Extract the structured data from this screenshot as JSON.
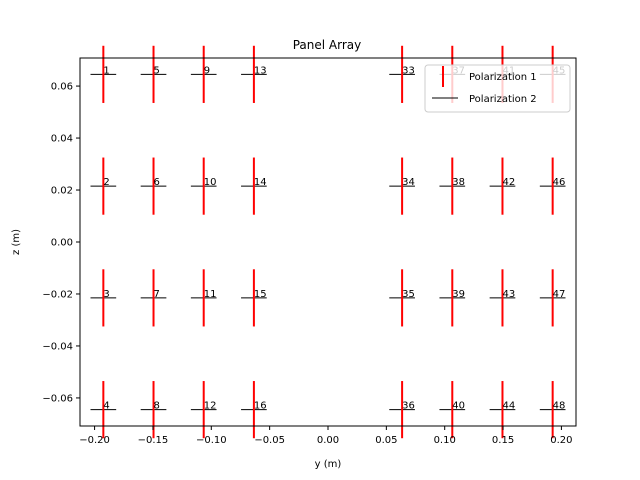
{
  "chart_data": {
    "type": "scatter",
    "title": "Panel Array",
    "xlabel": "y (m)",
    "ylabel": "z (m)",
    "xlim": [
      -0.2125,
      0.2125
    ],
    "ylim": [
      -0.0708,
      0.0708
    ],
    "xticks": [
      -0.2,
      -0.15,
      -0.1,
      -0.05,
      0.0,
      0.05,
      0.1,
      0.15,
      0.2
    ],
    "xtick_labels": [
      "−0.20",
      "−0.15",
      "−0.10",
      "−0.05",
      "0.00",
      "0.05",
      "0.10",
      "0.15",
      "0.20"
    ],
    "yticks": [
      0.06,
      0.04,
      0.02,
      0.0,
      -0.02,
      -0.04,
      -0.06
    ],
    "ytick_labels": [
      "0.06",
      "0.04",
      "0.02",
      "0.00",
      "−0.02",
      "−0.04",
      "−0.06"
    ],
    "grid": false,
    "legend": {
      "placement": "top-right",
      "entries": [
        {
          "name": "Polarization 1",
          "color": "#ff0000",
          "marker": "vertical-line"
        },
        {
          "name": "Polarization 2",
          "color": "#000000",
          "marker": "horizontal-line"
        }
      ]
    },
    "element_half_length": 0.011,
    "columns_y": [
      -0.1925,
      -0.1495,
      -0.1065,
      -0.0635,
      0.0635,
      0.1065,
      0.1495,
      0.1925
    ],
    "rows_z": [
      0.0645,
      0.0215,
      -0.0215,
      -0.0645
    ],
    "elements": [
      {
        "label": "1",
        "y": -0.1925,
        "z": 0.0645
      },
      {
        "label": "2",
        "y": -0.1925,
        "z": 0.0215
      },
      {
        "label": "3",
        "y": -0.1925,
        "z": -0.0215
      },
      {
        "label": "4",
        "y": -0.1925,
        "z": -0.0645
      },
      {
        "label": "5",
        "y": -0.1495,
        "z": 0.0645
      },
      {
        "label": "6",
        "y": -0.1495,
        "z": 0.0215
      },
      {
        "label": "7",
        "y": -0.1495,
        "z": -0.0215
      },
      {
        "label": "8",
        "y": -0.1495,
        "z": -0.0645
      },
      {
        "label": "9",
        "y": -0.1065,
        "z": 0.0645
      },
      {
        "label": "10",
        "y": -0.1065,
        "z": 0.0215
      },
      {
        "label": "11",
        "y": -0.1065,
        "z": -0.0215
      },
      {
        "label": "12",
        "y": -0.1065,
        "z": -0.0645
      },
      {
        "label": "13",
        "y": -0.0635,
        "z": 0.0645
      },
      {
        "label": "14",
        "y": -0.0635,
        "z": 0.0215
      },
      {
        "label": "15",
        "y": -0.0635,
        "z": -0.0215
      },
      {
        "label": "16",
        "y": -0.0635,
        "z": -0.0645
      },
      {
        "label": "33",
        "y": 0.0635,
        "z": 0.0645
      },
      {
        "label": "34",
        "y": 0.0635,
        "z": 0.0215
      },
      {
        "label": "35",
        "y": 0.0635,
        "z": -0.0215
      },
      {
        "label": "36",
        "y": 0.0635,
        "z": -0.0645
      },
      {
        "label": "37",
        "y": 0.1065,
        "z": 0.0645
      },
      {
        "label": "38",
        "y": 0.1065,
        "z": 0.0215
      },
      {
        "label": "39",
        "y": 0.1065,
        "z": -0.0215
      },
      {
        "label": "40",
        "y": 0.1065,
        "z": -0.0645
      },
      {
        "label": "41",
        "y": 0.1495,
        "z": 0.0645
      },
      {
        "label": "42",
        "y": 0.1495,
        "z": 0.0215
      },
      {
        "label": "43",
        "y": 0.1495,
        "z": -0.0215
      },
      {
        "label": "44",
        "y": 0.1495,
        "z": -0.0645
      },
      {
        "label": "45",
        "y": 0.1925,
        "z": 0.0645
      },
      {
        "label": "46",
        "y": 0.1925,
        "z": 0.0215
      },
      {
        "label": "47",
        "y": 0.1925,
        "z": -0.0215
      },
      {
        "label": "48",
        "y": 0.1925,
        "z": -0.0645
      }
    ]
  }
}
